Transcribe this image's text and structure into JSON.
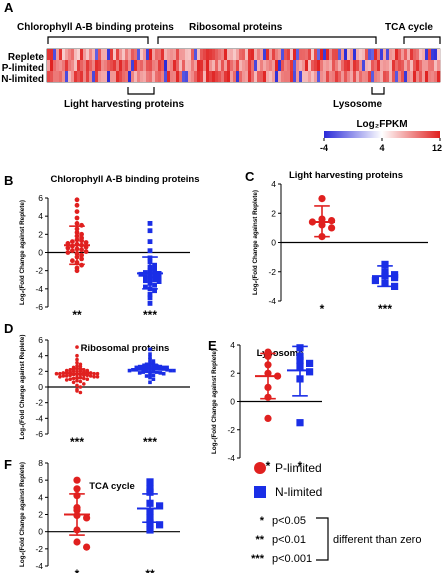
{
  "panels": {
    "A": {
      "letter": "A",
      "rows": [
        "Replete",
        "P-limited",
        "N-limited"
      ],
      "groups_top": [
        "Chlorophyll A-B binding proteins",
        "Ribosomal proteins",
        "TCA cycle"
      ],
      "groups_bottom": [
        "Light harvesting proteins",
        "Lysosome"
      ],
      "colorbar": {
        "title": "Log₂FPKM",
        "ticks": [
          "-4",
          "4",
          "12"
        ],
        "low": "#2a2ad8",
        "mid": "#ffffff",
        "high": "#e0201f"
      }
    },
    "B": {
      "letter": "B",
      "title": "Chlorophyll A-B binding proteins",
      "ylabel": "Log₂(Fold Change against Replete)"
    },
    "C": {
      "letter": "C",
      "title": "Light harvesting proteins",
      "ylabel": "Log₂(Fold Change against Replete)"
    },
    "D": {
      "letter": "D",
      "title": "Ribosomal proteins",
      "ylabel": "Log₂(Fold Change against Replete)"
    },
    "E": {
      "letter": "E",
      "title": "Lysosome",
      "ylabel": "Log₂(Fold Change against Replete)"
    },
    "F": {
      "letter": "F",
      "title": "TCA cycle",
      "ylabel": "Log₂(Fold Change against Replete)"
    }
  },
  "legend": {
    "p_label": "P-limited",
    "n_label": "N-limited",
    "sig": [
      {
        "stars": "*",
        "text": "p<0.05"
      },
      {
        "stars": "**",
        "text": "p<0.01"
      },
      {
        "stars": "***",
        "text": "p<0.001"
      }
    ],
    "bracket_text": "different than zero"
  },
  "colors": {
    "p_limited": "#e0201f",
    "n_limited": "#1a2ee6"
  },
  "chart_data": [
    {
      "id": "B",
      "type": "scatter",
      "ylim": [
        -6,
        6
      ],
      "yticks": [
        -6,
        -4,
        -2,
        0,
        2,
        4,
        6
      ],
      "categories": [
        "P-limited",
        "N-limited"
      ],
      "series": [
        {
          "mean": 0.8,
          "sd_low": -1.3,
          "sd_high": 2.9,
          "sig": "**",
          "values": [
            5.8,
            5.2,
            4.5,
            3.8,
            3.2,
            3.0,
            2.6,
            2.2,
            2.0,
            1.8,
            1.6,
            1.4,
            1.3,
            1.2,
            1.1,
            1.0,
            0.9,
            0.8,
            0.7,
            0.6,
            0.5,
            0.4,
            0.3,
            0.2,
            0.1,
            0.0,
            -0.1,
            -0.3,
            -0.5,
            -0.7,
            -0.9,
            -1.1,
            -1.4,
            -1.7,
            -2.0
          ]
        },
        {
          "mean": -2.3,
          "sd_low": -4.0,
          "sd_high": -0.5,
          "sig": "***",
          "values": [
            3.2,
            2.4,
            1.2,
            0.2,
            -0.6,
            -1.0,
            -1.4,
            -1.6,
            -1.8,
            -2.0,
            -2.1,
            -2.2,
            -2.3,
            -2.4,
            -2.5,
            -2.6,
            -2.7,
            -2.8,
            -2.9,
            -3.0,
            -3.1,
            -3.2,
            -3.4,
            -3.6,
            -3.8,
            -4.0,
            -4.2,
            -4.6,
            -5.0,
            -5.6
          ]
        }
      ]
    },
    {
      "id": "C",
      "type": "scatter",
      "ylim": [
        -4,
        4
      ],
      "yticks": [
        -4,
        -2,
        0,
        2,
        4
      ],
      "categories": [
        "P-limited",
        "N-limited"
      ],
      "series": [
        {
          "mean": 1.4,
          "sd_low": 0.4,
          "sd_high": 2.5,
          "sig": "*",
          "values": [
            3.0,
            1.6,
            1.5,
            1.4,
            1.2,
            1.0,
            0.4
          ]
        },
        {
          "mean": -2.3,
          "sd_low": -3.0,
          "sd_high": -1.6,
          "sig": "***",
          "values": [
            -1.5,
            -2.0,
            -2.2,
            -2.3,
            -2.4,
            -2.6,
            -2.8,
            -3.0
          ]
        }
      ]
    },
    {
      "id": "D",
      "type": "scatter",
      "ylim": [
        -6,
        6
      ],
      "yticks": [
        -6,
        -4,
        -2,
        0,
        2,
        4,
        6
      ],
      "categories": [
        "P-limited",
        "N-limited"
      ],
      "series": [
        {
          "mean": 1.7,
          "sd_low": 1.1,
          "sd_high": 2.3,
          "sig": "***",
          "values": [
            5.1,
            4.0,
            3.5,
            3.1,
            2.9,
            2.7,
            2.6,
            2.5,
            2.4,
            2.3,
            2.3,
            2.2,
            2.2,
            2.1,
            2.1,
            2.0,
            2.0,
            2.0,
            1.9,
            1.9,
            1.9,
            1.8,
            1.8,
            1.8,
            1.7,
            1.7,
            1.7,
            1.7,
            1.6,
            1.6,
            1.6,
            1.5,
            1.5,
            1.5,
            1.4,
            1.4,
            1.4,
            1.3,
            1.3,
            1.3,
            1.2,
            1.2,
            1.1,
            1.1,
            1.0,
            1.0,
            0.9,
            0.8,
            0.7,
            0.6,
            0.4,
            0.2,
            0.0,
            -0.3,
            -0.5,
            -0.7
          ]
        },
        {
          "mean": 2.4,
          "sd_low": 1.9,
          "sd_high": 2.9,
          "sig": "***",
          "values": [
            4.8,
            4.2,
            3.8,
            3.5,
            3.3,
            3.1,
            3.0,
            2.9,
            2.8,
            2.8,
            2.7,
            2.7,
            2.6,
            2.6,
            2.6,
            2.5,
            2.5,
            2.5,
            2.4,
            2.4,
            2.4,
            2.4,
            2.3,
            2.3,
            2.3,
            2.3,
            2.2,
            2.2,
            2.2,
            2.1,
            2.1,
            2.1,
            2.0,
            2.0,
            2.0,
            1.9,
            1.9,
            1.8,
            1.8,
            1.7,
            1.6,
            1.5,
            1.4,
            1.2,
            1.0,
            0.6
          ]
        }
      ]
    },
    {
      "id": "E",
      "type": "scatter",
      "ylim": [
        -4,
        4
      ],
      "yticks": [
        -4,
        -2,
        0,
        2,
        4
      ],
      "categories": [
        "P-limited",
        "N-limited"
      ],
      "series": [
        {
          "mean": 1.8,
          "sd_low": 0.2,
          "sd_high": 3.4,
          "sig": "*",
          "values": [
            3.5,
            3.2,
            2.6,
            2.0,
            1.8,
            1.0,
            0.3,
            -1.2
          ]
        },
        {
          "mean": 2.2,
          "sd_low": 0.4,
          "sd_high": 3.9,
          "sig": "*",
          "values": [
            3.8,
            3.2,
            2.9,
            2.7,
            2.5,
            2.1,
            1.6,
            -1.5
          ]
        }
      ]
    },
    {
      "id": "F",
      "type": "scatter",
      "ylim": [
        -4,
        8
      ],
      "yticks": [
        -4,
        -2,
        0,
        2,
        4,
        6,
        8
      ],
      "categories": [
        "P-limited",
        "N-limited"
      ],
      "series": [
        {
          "mean": 2.0,
          "sd_low": -0.4,
          "sd_high": 4.4,
          "sig": "*",
          "values": [
            6.0,
            5.0,
            4.2,
            2.8,
            2.5,
            1.9,
            1.6,
            0.2,
            -1.2,
            -1.8
          ]
        },
        {
          "mean": 2.7,
          "sd_low": 1.1,
          "sd_high": 4.4,
          "sig": "**",
          "values": [
            5.8,
            5.0,
            4.6,
            3.3,
            3.0,
            2.4,
            1.6,
            1.0,
            0.8,
            0.2
          ]
        }
      ]
    }
  ]
}
